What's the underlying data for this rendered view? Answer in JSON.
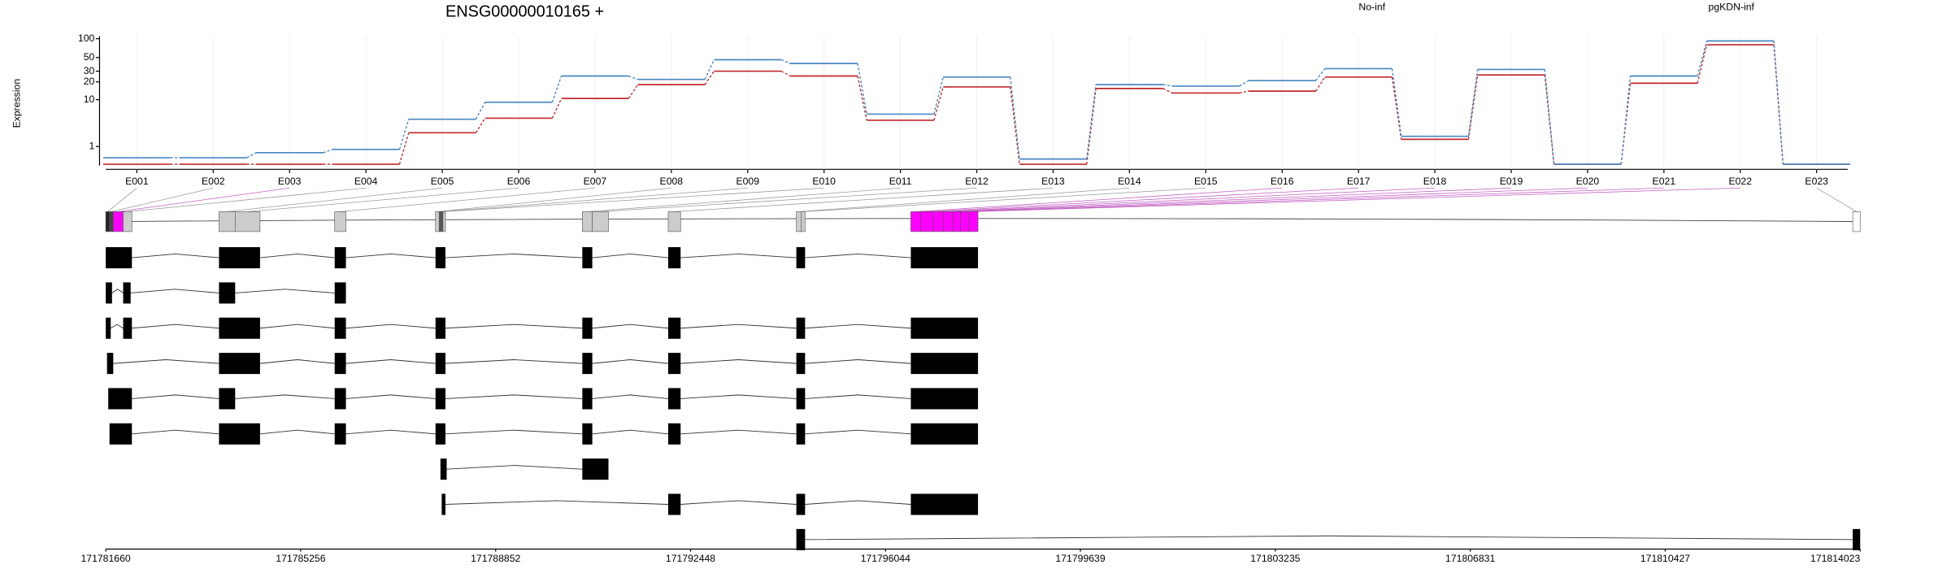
{
  "chart_data": {
    "type": "line",
    "title": "ENSG00000010165 +",
    "ylabel": "Expression",
    "categories": [
      "E001",
      "E002",
      "E003",
      "E004",
      "E005",
      "E006",
      "E007",
      "E008",
      "E009",
      "E010",
      "E011",
      "E012",
      "E013",
      "E014",
      "E015",
      "E016",
      "E017",
      "E018",
      "E019",
      "E020",
      "E021",
      "E022",
      "E023"
    ],
    "yscale": "log1p",
    "ylim": [
      0,
      110
    ],
    "yticks": [
      1,
      10,
      20,
      30,
      50,
      100
    ],
    "grid": true,
    "series": [
      {
        "name": "No-inf",
        "color": "#c0282d",
        "values": [
          0.05,
          0.05,
          0.05,
          0.05,
          2.3,
          4.6,
          10.5,
          18,
          30,
          25,
          4.2,
          16.5,
          0.05,
          15.5,
          13,
          14,
          24,
          1.6,
          26,
          0.05,
          19,
          80,
          0.05
        ]
      },
      {
        "name": "pgKDN-inf",
        "color": "#4a86c0",
        "values": [
          0.33,
          0.33,
          0.6,
          0.8,
          4.4,
          9,
          25,
          22,
          46,
          40,
          5.5,
          24,
          0.27,
          18,
          17,
          21,
          33,
          1.9,
          32,
          0.05,
          25,
          92,
          0.05
        ]
      }
    ],
    "xlim": [
      171781660,
      171814023
    ],
    "xticks": [
      171781660,
      171785256,
      171788852,
      171792448,
      171796044,
      171799639,
      171803235,
      171806831,
      171810427,
      171814023
    ],
    "bins": [
      [
        171781660,
        171781729
      ],
      [
        171781729,
        171781798
      ],
      [
        171781798,
        171781981
      ],
      [
        171781981,
        171782142
      ],
      [
        171783749,
        171784047
      ],
      [
        171784047,
        171784506
      ],
      [
        171785883,
        171786090
      ],
      [
        171787743,
        171787811
      ],
      [
        171787811,
        171787880
      ],
      [
        171787880,
        171787926
      ],
      [
        171790451,
        171790635
      ],
      [
        171790635,
        171790933
      ],
      [
        171792035,
        171792264
      ],
      [
        171794399,
        171794491
      ],
      [
        171794491,
        171794560
      ],
      [
        171796511,
        171796695
      ],
      [
        171796695,
        171796924
      ],
      [
        171796924,
        171797108
      ],
      [
        171797108,
        171797291
      ],
      [
        171797291,
        171797429
      ],
      [
        171797429,
        171797590
      ],
      [
        171797590,
        171797750
      ],
      [
        171813886,
        171814023
      ]
    ],
    "bin_colors": [
      "#222222",
      "#444444",
      "#ff00ff",
      "#cccccc",
      "#cccccc",
      "#cccccc",
      "#cccccc",
      "#cccccc",
      "#555555",
      "#cccccc",
      "#cccccc",
      "#cccccc",
      "#cccccc",
      "#cccccc",
      "#cccccc",
      "#ff00ff",
      "#ff00ff",
      "#ff00ff",
      "#ff00ff",
      "#ff00ff",
      "#ff00ff",
      "#ff00ff",
      "#ffffff"
    ],
    "transcripts": [
      [
        [
          171781660,
          171782142
        ],
        [
          171783749,
          171784506
        ],
        [
          171785883,
          171786090
        ],
        [
          171787743,
          171787926
        ],
        [
          171790451,
          171790635
        ],
        [
          171792035,
          171792264
        ],
        [
          171794399,
          171794560
        ],
        [
          171796511,
          171797750
        ]
      ],
      [
        [
          171781660,
          171781775
        ],
        [
          171781981,
          171782119
        ],
        [
          171783749,
          171784047
        ],
        [
          171785883,
          171786090
        ]
      ],
      [
        [
          171781660,
          171781752
        ],
        [
          171781981,
          171782142
        ],
        [
          171783749,
          171784506
        ],
        [
          171785883,
          171786090
        ],
        [
          171787743,
          171787926
        ],
        [
          171790451,
          171790635
        ],
        [
          171792035,
          171792264
        ],
        [
          171794399,
          171794560
        ],
        [
          171796511,
          171797750
        ]
      ],
      [
        [
          171781683,
          171781798
        ],
        [
          171783749,
          171784506
        ],
        [
          171785883,
          171786090
        ],
        [
          171787743,
          171787926
        ],
        [
          171790451,
          171790635
        ],
        [
          171792035,
          171792264
        ],
        [
          171794399,
          171794560
        ],
        [
          171796511,
          171797750
        ]
      ],
      [
        [
          171781706,
          171782142
        ],
        [
          171783749,
          171784047
        ],
        [
          171785883,
          171786090
        ],
        [
          171787743,
          171787926
        ],
        [
          171790451,
          171790635
        ],
        [
          171792035,
          171792264
        ],
        [
          171794399,
          171794560
        ],
        [
          171796511,
          171797750
        ]
      ],
      [
        [
          171781729,
          171782142
        ],
        [
          171783749,
          171784506
        ],
        [
          171785883,
          171786090
        ],
        [
          171787743,
          171787926
        ],
        [
          171790451,
          171790635
        ],
        [
          171792035,
          171792264
        ],
        [
          171794399,
          171794560
        ],
        [
          171796511,
          171797750
        ]
      ],
      [
        [
          171787834,
          171787949
        ],
        [
          171790451,
          171790933
        ]
      ],
      [
        [
          171787857,
          171787926
        ],
        [
          171792035,
          171792264
        ],
        [
          171794399,
          171794560
        ],
        [
          171796511,
          171797750
        ]
      ],
      [
        [
          171794399,
          171794560
        ],
        [
          171813886,
          171814023
        ]
      ]
    ]
  }
}
